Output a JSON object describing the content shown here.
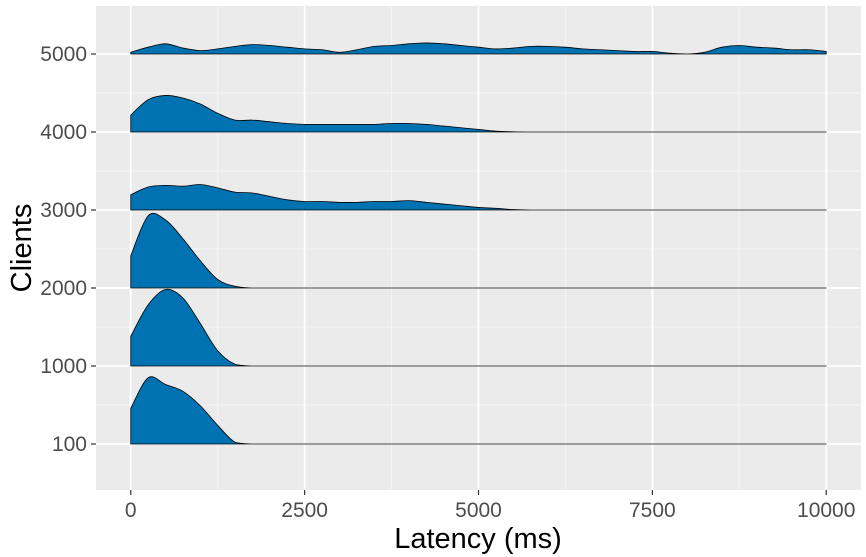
{
  "chart_data": {
    "type": "ridgeline",
    "xlabel": "Latency (ms)",
    "ylabel": "Clients",
    "xlim": [
      -500,
      10500
    ],
    "x_ticks": [
      0,
      2500,
      5000,
      7500,
      10000
    ],
    "x_tick_labels": [
      "0",
      "2500",
      "5000",
      "7500",
      "10000"
    ],
    "grid": true,
    "fill_color": "#0072B2",
    "panel_color": "#EBEBEB",
    "x_grid": [
      0,
      250,
      500,
      750,
      1000,
      1250,
      1500,
      1750,
      2000,
      2250,
      2500,
      2750,
      3000,
      3250,
      3500,
      3750,
      4000,
      4250,
      4500,
      4750,
      5000,
      5250,
      5500,
      5750,
      6000,
      6250,
      6500,
      6750,
      7000,
      7250,
      7500,
      7750,
      8000,
      8250,
      8500,
      8750,
      9000,
      9250,
      9500,
      9750,
      10000
    ],
    "series": [
      {
        "name": "100",
        "density": [
          0.42,
          0.78,
          0.7,
          0.62,
          0.45,
          0.22,
          0.02,
          0,
          0,
          0,
          0,
          0,
          0,
          0,
          0,
          0,
          0,
          0,
          0,
          0,
          0,
          0,
          0,
          0,
          0,
          0,
          0,
          0,
          0,
          0,
          0,
          0,
          0,
          0,
          0,
          0,
          0,
          0,
          0,
          0,
          0
        ]
      },
      {
        "name": "1000",
        "density": [
          0.35,
          0.72,
          0.9,
          0.8,
          0.5,
          0.18,
          0.02,
          0,
          0,
          0,
          0,
          0,
          0,
          0,
          0,
          0,
          0,
          0,
          0,
          0,
          0,
          0,
          0,
          0,
          0,
          0,
          0,
          0,
          0,
          0,
          0,
          0,
          0,
          0,
          0,
          0,
          0,
          0,
          0,
          0,
          0
        ]
      },
      {
        "name": "2000",
        "density": [
          0.38,
          0.85,
          0.8,
          0.58,
          0.32,
          0.1,
          0.02,
          0,
          0,
          0,
          0,
          0,
          0,
          0,
          0,
          0,
          0,
          0,
          0,
          0,
          0,
          0,
          0,
          0,
          0,
          0,
          0,
          0,
          0,
          0,
          0,
          0,
          0,
          0,
          0,
          0,
          0,
          0,
          0,
          0,
          0
        ]
      },
      {
        "name": "3000",
        "density": [
          0.18,
          0.27,
          0.29,
          0.28,
          0.3,
          0.26,
          0.21,
          0.2,
          0.16,
          0.12,
          0.1,
          0.1,
          0.09,
          0.09,
          0.1,
          0.1,
          0.11,
          0.09,
          0.07,
          0.05,
          0.03,
          0.02,
          0.005,
          0,
          0,
          0,
          0,
          0,
          0,
          0,
          0,
          0,
          0,
          0,
          0,
          0,
          0,
          0,
          0,
          0,
          0
        ]
      },
      {
        "name": "4000",
        "density": [
          0.2,
          0.38,
          0.43,
          0.4,
          0.33,
          0.22,
          0.14,
          0.14,
          0.12,
          0.1,
          0.09,
          0.09,
          0.09,
          0.09,
          0.09,
          0.1,
          0.1,
          0.09,
          0.07,
          0.05,
          0.03,
          0.01,
          0.003,
          0,
          0,
          0,
          0,
          0,
          0,
          0,
          0,
          0,
          0,
          0,
          0,
          0,
          0,
          0,
          0,
          0,
          0
        ]
      },
      {
        "name": "5000",
        "density": [
          0.02,
          0.08,
          0.12,
          0.07,
          0.04,
          0.06,
          0.09,
          0.11,
          0.1,
          0.08,
          0.06,
          0.05,
          0.02,
          0.05,
          0.09,
          0.1,
          0.12,
          0.13,
          0.12,
          0.1,
          0.08,
          0.06,
          0.07,
          0.09,
          0.09,
          0.08,
          0.06,
          0.05,
          0.04,
          0.03,
          0.03,
          0.01,
          0.0,
          0.02,
          0.08,
          0.1,
          0.08,
          0.07,
          0.05,
          0.05,
          0.03
        ]
      }
    ]
  }
}
